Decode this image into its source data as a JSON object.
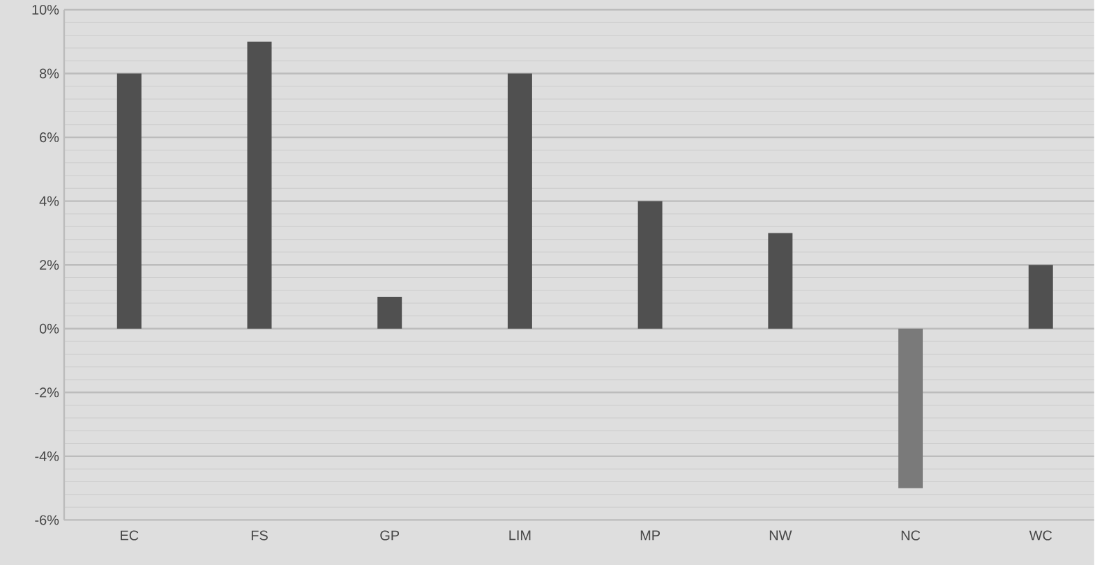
{
  "chart_data": {
    "type": "bar",
    "categories": [
      "EC",
      "FS",
      "GP",
      "LIM",
      "MP",
      "NW",
      "NC",
      "WC"
    ],
    "values": [
      8,
      9,
      1,
      8,
      4,
      3,
      -5,
      2
    ],
    "colors": [
      "#505050",
      "#505050",
      "#505050",
      "#505050",
      "#505050",
      "#505050",
      "#7a7a7a",
      "#505050"
    ],
    "ylim": [
      -6,
      10
    ],
    "yticks": [
      {
        "value": -6,
        "label": "-6%"
      },
      {
        "value": -4,
        "label": "-4%"
      },
      {
        "value": -2,
        "label": "-2%"
      },
      {
        "value": 0,
        "label": "0%"
      },
      {
        "value": 2,
        "label": "2%"
      },
      {
        "value": 4,
        "label": "4%"
      },
      {
        "value": 6,
        "label": "6%"
      },
      {
        "value": 8,
        "label": "8%"
      },
      {
        "value": 10,
        "label": "10%"
      }
    ],
    "grid": "y"
  }
}
